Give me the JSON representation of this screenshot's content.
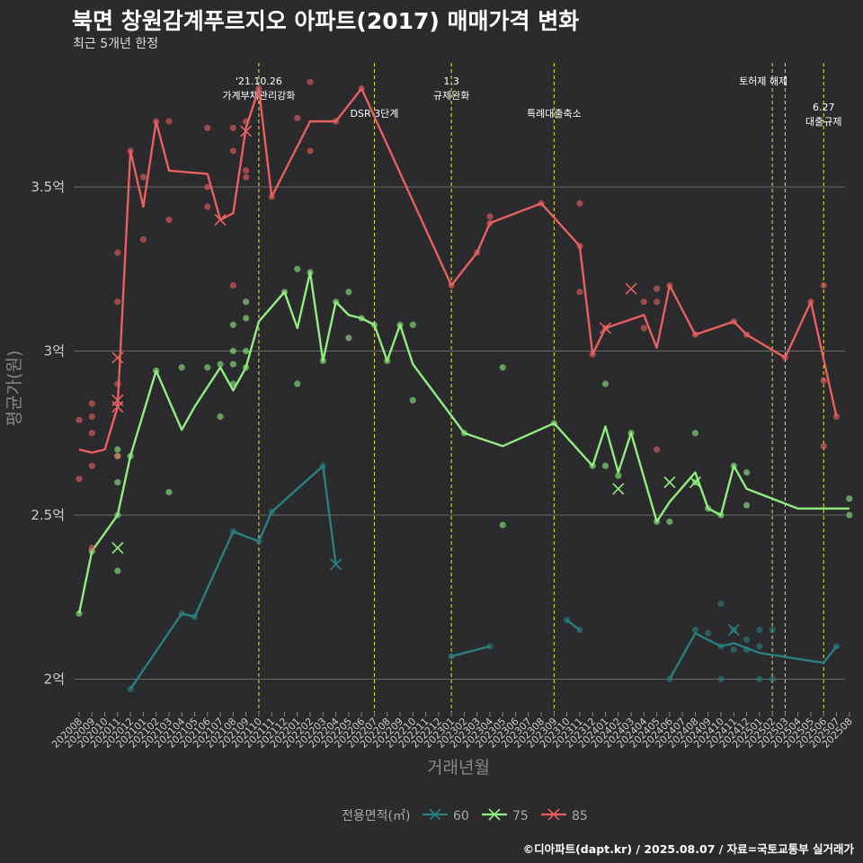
{
  "title": "북면 창원감계푸르지오 아파트(2017) 매매가격 변화",
  "subtitle": "최근 5개년 한정",
  "caption": "©디아파트(dapt.kr) / 2025.08.07 / 자료=국토교통부 실거래가",
  "chart_data": {
    "type": "line",
    "xlabel": "거래년월",
    "ylabel": "평균가(원)",
    "x_ticks": [
      "202008",
      "202009",
      "202010",
      "202011",
      "202012",
      "202101",
      "202102",
      "202103",
      "202104",
      "202105",
      "202106",
      "202107",
      "202108",
      "202109",
      "202110",
      "202111",
      "202112",
      "202201",
      "202202",
      "202203",
      "202204",
      "202205",
      "202206",
      "202207",
      "202208",
      "202209",
      "202210",
      "202211",
      "202212",
      "202301",
      "202302",
      "202303",
      "202304",
      "202305",
      "202306",
      "202307",
      "202308",
      "202309",
      "202310",
      "202311",
      "202312",
      "202401",
      "202402",
      "202403",
      "202404",
      "202405",
      "202406",
      "202407",
      "202408",
      "202409",
      "202410",
      "202411",
      "202412",
      "202501",
      "202502",
      "202503",
      "202504",
      "202505",
      "202506",
      "202507",
      "202508"
    ],
    "y_ticks": [
      {
        "value": 2.0,
        "label": "2억"
      },
      {
        "value": 2.5,
        "label": "2.5억"
      },
      {
        "value": 3.0,
        "label": "3억"
      },
      {
        "value": 3.5,
        "label": "3.5억"
      }
    ],
    "ylim": [
      1.9,
      3.9
    ],
    "grid": true,
    "legend_title": "전용면적(㎡)",
    "legend_position": "bottom",
    "series": [
      {
        "name": "60",
        "color": "#2a8080",
        "line": [
          [
            "202012",
            1.97
          ],
          [
            "202104",
            2.2
          ],
          [
            "202105",
            2.19
          ],
          [
            "202108",
            2.45
          ],
          [
            "202110",
            2.42
          ],
          [
            "202111",
            2.51
          ],
          [
            "202203",
            2.65
          ],
          [
            "202204",
            2.35
          ]
        ],
        "line2": [
          [
            "202301",
            2.07
          ],
          [
            "202304",
            2.1
          ]
        ],
        "line3": [
          [
            "202310",
            2.18
          ],
          [
            "202311",
            2.15
          ]
        ],
        "line4": [
          [
            "202406",
            2.0
          ],
          [
            "202408",
            2.14
          ],
          [
            "202410",
            2.1
          ],
          [
            "202411",
            2.11
          ],
          [
            "202501",
            2.08
          ],
          [
            "202506",
            2.05
          ],
          [
            "202507",
            2.1
          ]
        ],
        "points": [
          [
            "202012",
            1.97
          ],
          [
            "202104",
            2.2
          ],
          [
            "202105",
            2.19
          ],
          [
            "202108",
            2.45
          ],
          [
            "202110",
            2.42
          ],
          [
            "202111",
            2.51
          ],
          [
            "202203",
            2.65
          ],
          [
            "202301",
            2.07
          ],
          [
            "202304",
            2.1
          ],
          [
            "202310",
            2.18
          ],
          [
            "202311",
            2.15
          ],
          [
            "202406",
            2.0
          ],
          [
            "202408",
            2.15
          ],
          [
            "202409",
            2.14
          ],
          [
            "202410",
            2.23
          ],
          [
            "202410",
            2.0
          ],
          [
            "202410",
            2.1
          ],
          [
            "202411",
            2.09
          ],
          [
            "202411",
            2.15
          ],
          [
            "202412",
            2.12
          ],
          [
            "202412",
            2.09
          ],
          [
            "202501",
            2.15
          ],
          [
            "202501",
            2.1
          ],
          [
            "202501",
            2.0
          ],
          [
            "202502",
            2.15
          ],
          [
            "202502",
            2.0
          ],
          [
            "202507",
            2.1
          ]
        ],
        "cancelled": [
          [
            "202204",
            2.35
          ],
          [
            "202411",
            2.15
          ]
        ]
      },
      {
        "name": "75",
        "color": "#90ee80",
        "line": [
          [
            "202008",
            2.2
          ],
          [
            "202009",
            2.39
          ],
          [
            "202011",
            2.5
          ],
          [
            "202012",
            2.68
          ],
          [
            "202102",
            2.94
          ],
          [
            "202104",
            2.76
          ],
          [
            "202105",
            2.83
          ],
          [
            "202107",
            2.95
          ],
          [
            "202108",
            2.88
          ],
          [
            "202109",
            2.95
          ],
          [
            "202110",
            3.09
          ],
          [
            "202112",
            3.18
          ],
          [
            "202201",
            3.07
          ],
          [
            "202202",
            3.24
          ],
          [
            "202203",
            2.97
          ],
          [
            "202204",
            3.15
          ],
          [
            "202205",
            3.11
          ],
          [
            "202206",
            3.1
          ],
          [
            "202207",
            3.08
          ],
          [
            "202208",
            2.97
          ],
          [
            "202209",
            3.08
          ],
          [
            "202210",
            2.96
          ],
          [
            "202302",
            2.75
          ],
          [
            "202305",
            2.71
          ],
          [
            "202309",
            2.78
          ],
          [
            "202312",
            2.65
          ],
          [
            "202401",
            2.77
          ],
          [
            "202402",
            2.63
          ],
          [
            "202403",
            2.75
          ],
          [
            "202405",
            2.48
          ],
          [
            "202406",
            2.54
          ],
          [
            "202408",
            2.63
          ],
          [
            "202409",
            2.52
          ],
          [
            "202410",
            2.5
          ],
          [
            "202411",
            2.65
          ],
          [
            "202412",
            2.58
          ],
          [
            "202504",
            2.52
          ],
          [
            "202508",
            2.52
          ]
        ],
        "points": [
          [
            "202008",
            2.2
          ],
          [
            "202009",
            2.39
          ],
          [
            "202011",
            2.5
          ],
          [
            "202011",
            2.7
          ],
          [
            "202011",
            2.68
          ],
          [
            "202011",
            2.6
          ],
          [
            "202011",
            2.33
          ],
          [
            "202012",
            2.68
          ],
          [
            "202102",
            2.94
          ],
          [
            "202103",
            2.57
          ],
          [
            "202104",
            2.95
          ],
          [
            "202106",
            2.95
          ],
          [
            "202107",
            2.8
          ],
          [
            "202107",
            2.96
          ],
          [
            "202108",
            2.9
          ],
          [
            "202108",
            2.96
          ],
          [
            "202108",
            3.0
          ],
          [
            "202108",
            3.08
          ],
          [
            "202109",
            2.95
          ],
          [
            "202109",
            3.0
          ],
          [
            "202109",
            3.1
          ],
          [
            "202109",
            3.15
          ],
          [
            "202112",
            3.18
          ],
          [
            "202201",
            3.25
          ],
          [
            "202201",
            2.9
          ],
          [
            "202202",
            3.24
          ],
          [
            "202203",
            2.97
          ],
          [
            "202204",
            3.15
          ],
          [
            "202205",
            3.18
          ],
          [
            "202205",
            3.04
          ],
          [
            "202206",
            3.1
          ],
          [
            "202207",
            3.08
          ],
          [
            "202208",
            2.97
          ],
          [
            "202209",
            3.08
          ],
          [
            "202210",
            3.08
          ],
          [
            "202210",
            2.85
          ],
          [
            "202302",
            2.75
          ],
          [
            "202305",
            2.95
          ],
          [
            "202305",
            2.47
          ],
          [
            "202309",
            2.78
          ],
          [
            "202312",
            2.65
          ],
          [
            "202401",
            2.9
          ],
          [
            "202401",
            2.65
          ],
          [
            "202402",
            2.62
          ],
          [
            "202403",
            2.75
          ],
          [
            "202405",
            2.48
          ],
          [
            "202406",
            2.48
          ],
          [
            "202408",
            2.75
          ],
          [
            "202408",
            2.6
          ],
          [
            "202409",
            2.52
          ],
          [
            "202410",
            2.5
          ],
          [
            "202411",
            2.65
          ],
          [
            "202412",
            2.63
          ],
          [
            "202412",
            2.53
          ],
          [
            "202508",
            2.55
          ],
          [
            "202508",
            2.5
          ]
        ],
        "cancelled": [
          [
            "202011",
            2.4
          ],
          [
            "202402",
            2.58
          ],
          [
            "202406",
            2.6
          ],
          [
            "202408",
            2.6
          ]
        ]
      },
      {
        "name": "85",
        "color": "#e8605f",
        "line": [
          [
            "202008",
            2.7
          ],
          [
            "202009",
            2.69
          ],
          [
            "202010",
            2.7
          ],
          [
            "202011",
            2.83
          ],
          [
            "202012",
            3.61
          ],
          [
            "202101",
            3.44
          ],
          [
            "202102",
            3.7
          ],
          [
            "202103",
            3.55
          ],
          [
            "202106",
            3.54
          ],
          [
            "202107",
            3.4
          ],
          [
            "202108",
            3.42
          ],
          [
            "202109",
            3.68
          ],
          [
            "202110",
            3.8
          ],
          [
            "202111",
            3.47
          ],
          [
            "202202",
            3.7
          ],
          [
            "202204",
            3.7
          ],
          [
            "202206",
            3.8
          ],
          [
            "202301",
            3.2
          ],
          [
            "202303",
            3.3
          ],
          [
            "202304",
            3.39
          ],
          [
            "202308",
            3.45
          ],
          [
            "202311",
            3.32
          ],
          [
            "202312",
            2.99
          ],
          [
            "202401",
            3.07
          ],
          [
            "202404",
            3.11
          ],
          [
            "202405",
            3.01
          ],
          [
            "202406",
            3.2
          ],
          [
            "202408",
            3.05
          ],
          [
            "202411",
            3.09
          ],
          [
            "202412",
            3.05
          ],
          [
            "202503",
            2.98
          ],
          [
            "202505",
            3.15
          ],
          [
            "202507",
            2.8
          ]
        ],
        "points": [
          [
            "202008",
            2.79
          ],
          [
            "202008",
            2.61
          ],
          [
            "202009",
            2.84
          ],
          [
            "202009",
            2.8
          ],
          [
            "202009",
            2.75
          ],
          [
            "202009",
            2.65
          ],
          [
            "202009",
            2.4
          ],
          [
            "202011",
            3.3
          ],
          [
            "202011",
            3.15
          ],
          [
            "202011",
            2.9
          ],
          [
            "202011",
            2.68
          ],
          [
            "202012",
            3.61
          ],
          [
            "202101",
            3.53
          ],
          [
            "202101",
            3.34
          ],
          [
            "202102",
            3.7
          ],
          [
            "202103",
            3.7
          ],
          [
            "202103",
            3.4
          ],
          [
            "202106",
            3.68
          ],
          [
            "202106",
            3.5
          ],
          [
            "202106",
            3.44
          ],
          [
            "202108",
            3.68
          ],
          [
            "202108",
            3.61
          ],
          [
            "202108",
            3.2
          ],
          [
            "202109",
            3.7
          ],
          [
            "202109",
            3.55
          ],
          [
            "202109",
            3.53
          ],
          [
            "202110",
            3.8
          ],
          [
            "202111",
            3.47
          ],
          [
            "202201",
            3.71
          ],
          [
            "202202",
            3.82
          ],
          [
            "202202",
            3.61
          ],
          [
            "202204",
            3.7
          ],
          [
            "202206",
            3.8
          ],
          [
            "202301",
            3.2
          ],
          [
            "202303",
            3.3
          ],
          [
            "202304",
            3.41
          ],
          [
            "202304",
            3.39
          ],
          [
            "202308",
            3.45
          ],
          [
            "202311",
            3.45
          ],
          [
            "202311",
            3.32
          ],
          [
            "202311",
            3.18
          ],
          [
            "202312",
            2.99
          ],
          [
            "202401",
            3.07
          ],
          [
            "202404",
            3.15
          ],
          [
            "202404",
            3.07
          ],
          [
            "202405",
            3.19
          ],
          [
            "202405",
            3.15
          ],
          [
            "202405",
            2.7
          ],
          [
            "202406",
            3.2
          ],
          [
            "202408",
            3.05
          ],
          [
            "202411",
            3.09
          ],
          [
            "202412",
            3.05
          ],
          [
            "202503",
            2.98
          ],
          [
            "202505",
            3.15
          ],
          [
            "202506",
            3.2
          ],
          [
            "202506",
            2.91
          ],
          [
            "202506",
            2.71
          ],
          [
            "202507",
            2.8
          ]
        ],
        "cancelled": [
          [
            "202011",
            2.98
          ],
          [
            "202011",
            2.85
          ],
          [
            "202011",
            2.83
          ],
          [
            "202107",
            3.4
          ],
          [
            "202109",
            3.67
          ],
          [
            "202403",
            3.19
          ],
          [
            "202401",
            3.07
          ]
        ]
      }
    ],
    "events": [
      {
        "x": "202110",
        "label": "'21.10.26",
        "label2": "가계부채관리강화",
        "row": 1
      },
      {
        "x": "202207",
        "label": "DSR 3단계",
        "label2": "",
        "row": 2
      },
      {
        "x": "202301",
        "label": "1.3",
        "label2": "규제완화",
        "row": 1
      },
      {
        "x": "202309",
        "label": "특례대출축소",
        "label2": "",
        "row": 2
      },
      {
        "x": "202502",
        "label": "토허제 해제",
        "label2": "",
        "row": 1,
        "shift": 10
      },
      {
        "x": "202503",
        "label": "",
        "label2": "",
        "row": 1
      },
      {
        "x": "202506",
        "label": "6.27",
        "label2": "대출규제",
        "row": 3
      }
    ]
  }
}
